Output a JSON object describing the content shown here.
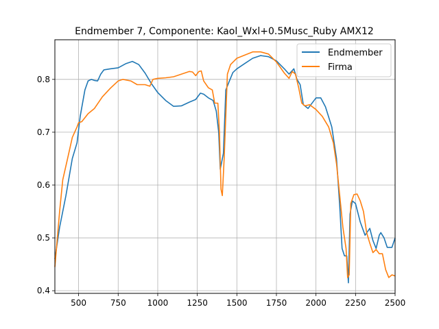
{
  "chart_data": {
    "type": "line",
    "title": "Endmember 7, Componente: Kaol_Wxl+0.5Musc_Ruby AMX12",
    "xlabel": "",
    "ylabel": "",
    "xlim": [
      350,
      2500
    ],
    "ylim": [
      0.395,
      0.875
    ],
    "xticks": [
      500,
      750,
      1000,
      1250,
      1500,
      1750,
      2000,
      2250,
      2500
    ],
    "yticks": [
      0.4,
      0.5,
      0.6,
      0.7,
      0.8
    ],
    "grid": true,
    "legend_position": "top-right",
    "series": [
      {
        "name": "Endmember",
        "color": "#1f77b4",
        "points": [
          [
            350,
            0.46
          ],
          [
            380,
            0.52
          ],
          [
            420,
            0.58
          ],
          [
            460,
            0.65
          ],
          [
            490,
            0.68
          ],
          [
            510,
            0.73
          ],
          [
            540,
            0.78
          ],
          [
            560,
            0.797
          ],
          [
            580,
            0.8
          ],
          [
            600,
            0.798
          ],
          [
            620,
            0.797
          ],
          [
            640,
            0.81
          ],
          [
            660,
            0.818
          ],
          [
            700,
            0.82
          ],
          [
            750,
            0.822
          ],
          [
            800,
            0.83
          ],
          [
            840,
            0.834
          ],
          [
            880,
            0.828
          ],
          [
            920,
            0.812
          ],
          [
            960,
            0.792
          ],
          [
            1000,
            0.775
          ],
          [
            1050,
            0.76
          ],
          [
            1100,
            0.749
          ],
          [
            1150,
            0.75
          ],
          [
            1200,
            0.757
          ],
          [
            1240,
            0.762
          ],
          [
            1270,
            0.774
          ],
          [
            1290,
            0.772
          ],
          [
            1320,
            0.765
          ],
          [
            1350,
            0.76
          ],
          [
            1370,
            0.74
          ],
          [
            1385,
            0.7
          ],
          [
            1395,
            0.63
          ],
          [
            1405,
            0.645
          ],
          [
            1415,
            0.66
          ],
          [
            1430,
            0.78
          ],
          [
            1450,
            0.795
          ],
          [
            1475,
            0.813
          ],
          [
            1500,
            0.82
          ],
          [
            1550,
            0.83
          ],
          [
            1600,
            0.84
          ],
          [
            1650,
            0.845
          ],
          [
            1700,
            0.843
          ],
          [
            1750,
            0.835
          ],
          [
            1800,
            0.82
          ],
          [
            1830,
            0.81
          ],
          [
            1860,
            0.82
          ],
          [
            1880,
            0.8
          ],
          [
            1900,
            0.79
          ],
          [
            1920,
            0.752
          ],
          [
            1950,
            0.745
          ],
          [
            2000,
            0.765
          ],
          [
            2030,
            0.765
          ],
          [
            2060,
            0.748
          ],
          [
            2100,
            0.71
          ],
          [
            2130,
            0.65
          ],
          [
            2150,
            0.56
          ],
          [
            2165,
            0.48
          ],
          [
            2180,
            0.466
          ],
          [
            2195,
            0.466
          ],
          [
            2205,
            0.415
          ],
          [
            2215,
            0.545
          ],
          [
            2230,
            0.57
          ],
          [
            2250,
            0.565
          ],
          [
            2280,
            0.53
          ],
          [
            2310,
            0.505
          ],
          [
            2340,
            0.518
          ],
          [
            2360,
            0.495
          ],
          [
            2380,
            0.48
          ],
          [
            2400,
            0.505
          ],
          [
            2410,
            0.51
          ],
          [
            2430,
            0.5
          ],
          [
            2450,
            0.482
          ],
          [
            2480,
            0.482
          ],
          [
            2500,
            0.5
          ]
        ]
      },
      {
        "name": "Firma",
        "color": "#ff7f0e",
        "points": [
          [
            350,
            0.445
          ],
          [
            380,
            0.55
          ],
          [
            400,
            0.61
          ],
          [
            430,
            0.65
          ],
          [
            460,
            0.69
          ],
          [
            490,
            0.71
          ],
          [
            500,
            0.718
          ],
          [
            520,
            0.72
          ],
          [
            560,
            0.735
          ],
          [
            600,
            0.745
          ],
          [
            650,
            0.767
          ],
          [
            700,
            0.783
          ],
          [
            750,
            0.797
          ],
          [
            780,
            0.8
          ],
          [
            830,
            0.797
          ],
          [
            870,
            0.79
          ],
          [
            920,
            0.79
          ],
          [
            950,
            0.787
          ],
          [
            970,
            0.8
          ],
          [
            1000,
            0.802
          ],
          [
            1050,
            0.803
          ],
          [
            1100,
            0.805
          ],
          [
            1150,
            0.81
          ],
          [
            1200,
            0.815
          ],
          [
            1220,
            0.814
          ],
          [
            1240,
            0.807
          ],
          [
            1260,
            0.815
          ],
          [
            1275,
            0.816
          ],
          [
            1290,
            0.797
          ],
          [
            1320,
            0.784
          ],
          [
            1345,
            0.78
          ],
          [
            1360,
            0.755
          ],
          [
            1380,
            0.755
          ],
          [
            1390,
            0.7
          ],
          [
            1400,
            0.592
          ],
          [
            1408,
            0.58
          ],
          [
            1420,
            0.65
          ],
          [
            1440,
            0.81
          ],
          [
            1460,
            0.828
          ],
          [
            1500,
            0.84
          ],
          [
            1550,
            0.846
          ],
          [
            1600,
            0.852
          ],
          [
            1650,
            0.852
          ],
          [
            1700,
            0.848
          ],
          [
            1750,
            0.833
          ],
          [
            1800,
            0.812
          ],
          [
            1830,
            0.802
          ],
          [
            1850,
            0.815
          ],
          [
            1870,
            0.81
          ],
          [
            1890,
            0.785
          ],
          [
            1910,
            0.755
          ],
          [
            1930,
            0.75
          ],
          [
            1960,
            0.752
          ],
          [
            2000,
            0.743
          ],
          [
            2040,
            0.73
          ],
          [
            2080,
            0.71
          ],
          [
            2110,
            0.68
          ],
          [
            2130,
            0.64
          ],
          [
            2150,
            0.58
          ],
          [
            2170,
            0.52
          ],
          [
            2190,
            0.48
          ],
          [
            2200,
            0.425
          ],
          [
            2210,
            0.43
          ],
          [
            2220,
            0.565
          ],
          [
            2240,
            0.582
          ],
          [
            2260,
            0.583
          ],
          [
            2280,
            0.57
          ],
          [
            2300,
            0.55
          ],
          [
            2320,
            0.51
          ],
          [
            2340,
            0.49
          ],
          [
            2360,
            0.472
          ],
          [
            2380,
            0.478
          ],
          [
            2400,
            0.47
          ],
          [
            2420,
            0.47
          ],
          [
            2440,
            0.44
          ],
          [
            2460,
            0.425
          ],
          [
            2480,
            0.43
          ],
          [
            2500,
            0.428
          ]
        ]
      }
    ]
  }
}
